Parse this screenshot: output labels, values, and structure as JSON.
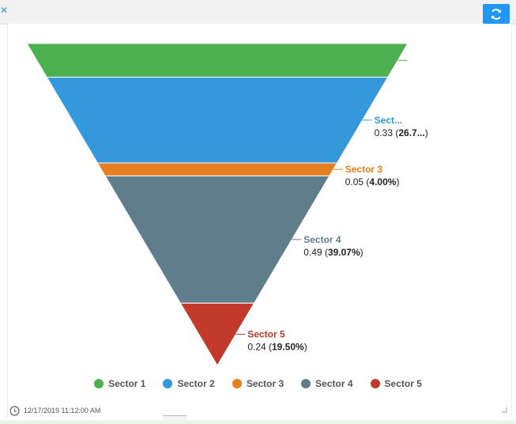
{
  "toolbar": {
    "close_icon": "close-icon",
    "refresh_icon": "refresh-icon",
    "accent_color": "#2196f3"
  },
  "chart_data": {
    "type": "funnel",
    "title": "",
    "series": [
      {
        "name": "Sector 1",
        "value": 0.13,
        "percent": "10.64%",
        "label_name": "",
        "label_value": "",
        "color": "#4caf50"
      },
      {
        "name": "Sector 2",
        "value": 0.33,
        "percent": "26.7...",
        "label_name": "Sect...",
        "label_value": "0.33",
        "color": "#3498db"
      },
      {
        "name": "Sector 3",
        "value": 0.05,
        "percent": "4.00%",
        "label_name": "Sector 3",
        "label_value": "0.05",
        "color": "#e67e22"
      },
      {
        "name": "Sector 4",
        "value": 0.49,
        "percent": "39.07%",
        "label_name": "Sector 4",
        "label_value": "0.49",
        "color": "#607d8b"
      },
      {
        "name": "Sector 5",
        "value": 0.24,
        "percent": "19.50%",
        "label_name": "Sector 5",
        "label_value": "0.24",
        "color": "#c0392b"
      }
    ],
    "legend_placement": "bottom"
  },
  "footer": {
    "timestamp": "12/17/2019 11:12:00 AM"
  }
}
